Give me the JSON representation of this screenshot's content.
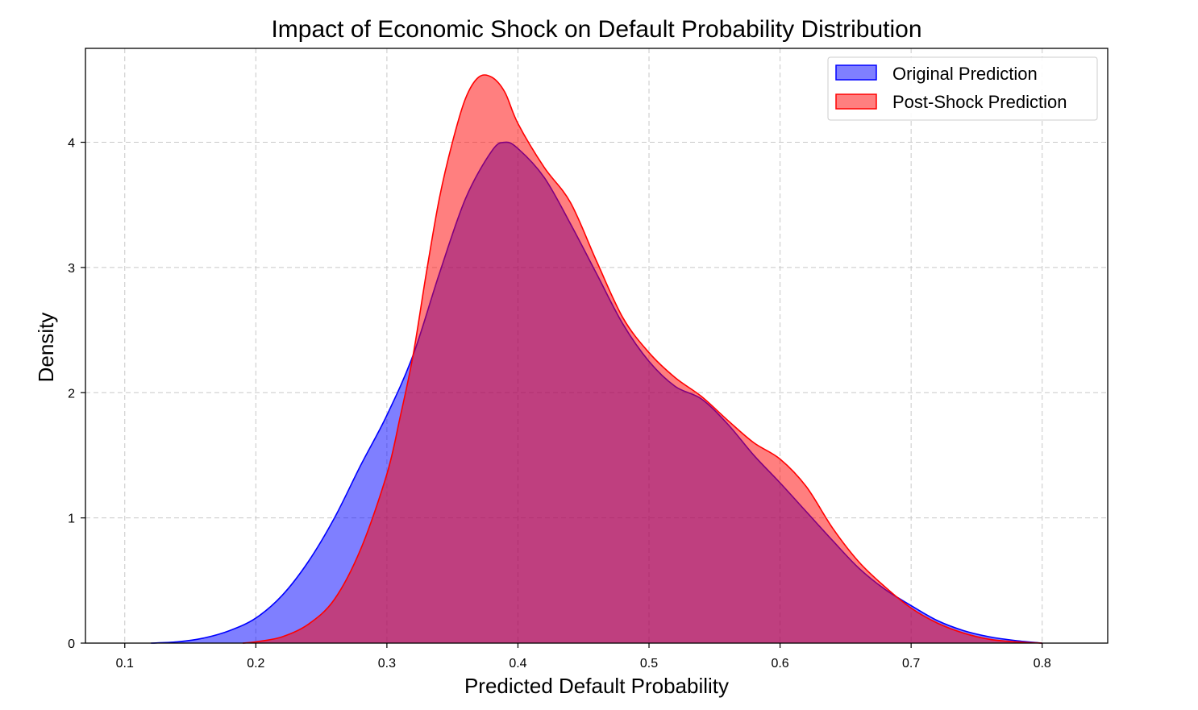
{
  "chart_data": {
    "type": "area",
    "title": "Impact of Economic Shock on Default Probability Distribution",
    "xlabel": "Predicted Default Probability",
    "ylabel": "Density",
    "xlim": [
      0.07,
      0.85
    ],
    "ylim": [
      0,
      4.75
    ],
    "grid": true,
    "legend_position": "top-right",
    "x_ticks": [
      0.1,
      0.2,
      0.3,
      0.4,
      0.5,
      0.6,
      0.7,
      0.8
    ],
    "x_tick_labels": [
      "0.1",
      "0.2",
      "0.3",
      "0.4",
      "0.5",
      "0.6",
      "0.7",
      "0.8"
    ],
    "y_ticks": [
      0,
      1,
      2,
      3,
      4
    ],
    "y_tick_labels": [
      "0",
      "1",
      "2",
      "3",
      "4"
    ],
    "series": [
      {
        "name": "Original Prediction",
        "fill_color": "#0000ff",
        "line_color": "#0000ff",
        "fill_opacity": 0.5,
        "x": [
          0.12,
          0.14,
          0.16,
          0.18,
          0.2,
          0.22,
          0.24,
          0.26,
          0.28,
          0.3,
          0.32,
          0.34,
          0.36,
          0.38,
          0.39,
          0.4,
          0.42,
          0.44,
          0.46,
          0.48,
          0.5,
          0.52,
          0.54,
          0.56,
          0.58,
          0.6,
          0.62,
          0.64,
          0.66,
          0.68,
          0.7,
          0.72,
          0.74,
          0.76,
          0.78,
          0.8
        ],
        "y": [
          0.0,
          0.01,
          0.04,
          0.1,
          0.2,
          0.38,
          0.65,
          1.0,
          1.42,
          1.82,
          2.3,
          2.95,
          3.55,
          3.93,
          4.0,
          3.95,
          3.72,
          3.35,
          2.95,
          2.55,
          2.25,
          2.05,
          1.95,
          1.75,
          1.5,
          1.28,
          1.05,
          0.82,
          0.6,
          0.43,
          0.3,
          0.18,
          0.1,
          0.05,
          0.02,
          0.0
        ]
      },
      {
        "name": "Post-Shock Prediction",
        "fill_color": "#ff0000",
        "line_color": "#ff0000",
        "fill_opacity": 0.5,
        "x": [
          0.19,
          0.2,
          0.22,
          0.24,
          0.26,
          0.28,
          0.3,
          0.31,
          0.32,
          0.33,
          0.34,
          0.35,
          0.36,
          0.37,
          0.38,
          0.39,
          0.4,
          0.42,
          0.44,
          0.46,
          0.48,
          0.5,
          0.52,
          0.54,
          0.56,
          0.58,
          0.6,
          0.62,
          0.64,
          0.66,
          0.68,
          0.7,
          0.72,
          0.74,
          0.76,
          0.78,
          0.8
        ],
        "y": [
          0.0,
          0.01,
          0.05,
          0.15,
          0.35,
          0.75,
          1.35,
          1.8,
          2.3,
          2.95,
          3.55,
          4.0,
          4.35,
          4.52,
          4.52,
          4.4,
          4.15,
          3.8,
          3.52,
          3.05,
          2.6,
          2.32,
          2.12,
          1.97,
          1.78,
          1.6,
          1.47,
          1.25,
          0.92,
          0.65,
          0.45,
          0.28,
          0.16,
          0.08,
          0.03,
          0.01,
          0.0
        ]
      }
    ]
  }
}
